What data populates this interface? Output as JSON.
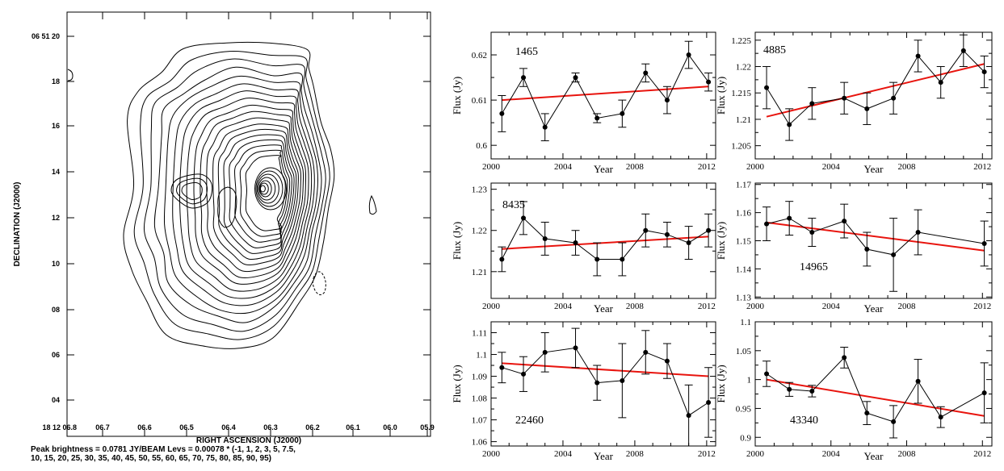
{
  "contour_map": {
    "type": "contour",
    "xlabel": "RIGHT ASCENSION (J2000)",
    "ylabel": "DECLINATION (J2000)",
    "x_ticks": [
      "18 12 06.8",
      "06.7",
      "06.6",
      "06.5",
      "06.4",
      "06.3",
      "06.2",
      "06.1",
      "06.0",
      "05.9"
    ],
    "y_ticks": [
      "06 51 20",
      "18",
      "16",
      "14",
      "12",
      "10",
      "08",
      "06",
      "04"
    ],
    "caption_line1": "Peak brightness = 0.0781 JY/BEAM     Levs = 0.00078 * (-1, 1, 2, 3, 5, 7.5,",
    "caption_line2": "10, 15, 20, 25, 30, 35, 40, 45, 50, 55, 60, 65, 70, 75, 80, 85, 90, 95)"
  },
  "chart_data": [
    {
      "type": "line",
      "label": "1465",
      "xlabel": "Year",
      "ylabel": "Flux (Jy)",
      "xlim": [
        2000,
        2012.5
      ],
      "ylim": [
        0.597,
        0.625
      ],
      "x_ticks": [
        "2000",
        "2004",
        "2008",
        "2012"
      ],
      "y_ticks": [
        "0.6",
        "0.61",
        "0.62"
      ],
      "x": [
        2000.6,
        2001.8,
        2003.0,
        2004.7,
        2005.9,
        2007.3,
        2008.6,
        2009.8,
        2011.0,
        2012.1
      ],
      "values": [
        0.607,
        0.615,
        0.604,
        0.615,
        0.606,
        0.607,
        0.616,
        0.61,
        0.62,
        0.614
      ],
      "errors": [
        0.004,
        0.002,
        0.003,
        0.001,
        0.001,
        0.003,
        0.002,
        0.003,
        0.003,
        0.002
      ],
      "fit": [
        [
          2000.6,
          0.61
        ],
        [
          2012.1,
          0.613
        ]
      ]
    },
    {
      "type": "line",
      "label": "4885",
      "xlabel": "Year",
      "ylabel": "Flux (Jy)",
      "xlim": [
        2000,
        2012.5
      ],
      "ylim": [
        1.2025,
        1.2265
      ],
      "x_ticks": [
        "2000",
        "2004",
        "2008",
        "2012"
      ],
      "y_ticks": [
        "1.205",
        "1.21",
        "1.215",
        "1.22",
        "1.225"
      ],
      "x": [
        2000.6,
        2001.8,
        2003.0,
        2004.7,
        2005.9,
        2007.3,
        2008.6,
        2009.8,
        2011.0,
        2012.1
      ],
      "values": [
        1.216,
        1.209,
        1.213,
        1.214,
        1.212,
        1.214,
        1.222,
        1.217,
        1.223,
        1.219
      ],
      "errors": [
        0.004,
        0.003,
        0.003,
        0.003,
        0.003,
        0.003,
        0.003,
        0.003,
        0.003,
        0.003
      ],
      "fit": [
        [
          2000.6,
          1.2105
        ],
        [
          2012.1,
          1.2205
        ]
      ]
    },
    {
      "type": "line",
      "label": "8435",
      "xlabel": "Year",
      "ylabel": "Flux (Jy)",
      "xlim": [
        2000,
        2012.5
      ],
      "ylim": [
        1.2035,
        1.2315
      ],
      "x_ticks": [
        "2000",
        "2004",
        "2008",
        "2012"
      ],
      "y_ticks": [
        "1.21",
        "1.22",
        "1.23"
      ],
      "x": [
        2000.6,
        2001.8,
        2003.0,
        2004.7,
        2005.9,
        2007.3,
        2008.6,
        2009.8,
        2011.0,
        2012.1
      ],
      "values": [
        1.213,
        1.223,
        1.218,
        1.217,
        1.213,
        1.213,
        1.22,
        1.219,
        1.217,
        1.22
      ],
      "errors": [
        0.003,
        0.004,
        0.004,
        0.003,
        0.004,
        0.004,
        0.004,
        0.003,
        0.004,
        0.004
      ],
      "fit": [
        [
          2000.6,
          1.2155
        ],
        [
          2012.1,
          1.2185
        ]
      ]
    },
    {
      "type": "line",
      "label": "14965",
      "xlabel": "Year",
      "ylabel": "Flux (Jy)",
      "xlim": [
        2000,
        2012.5
      ],
      "ylim": [
        1.1295,
        1.1705
      ],
      "x_ticks": [
        "2000",
        "2004",
        "2008",
        "2012"
      ],
      "y_ticks": [
        "1.13",
        "1.14",
        "1.15",
        "1.16",
        "1.17"
      ],
      "x": [
        2000.6,
        2001.8,
        2003.0,
        2004.7,
        2005.9,
        2007.3,
        2008.6,
        2012.1
      ],
      "values": [
        1.156,
        1.158,
        1.153,
        1.157,
        1.147,
        1.145,
        1.153,
        1.149
      ],
      "errors": [
        0.006,
        0.006,
        0.005,
        0.006,
        0.006,
        0.013,
        0.008,
        0.008
      ],
      "fit": [
        [
          2000.6,
          1.1565
        ],
        [
          2012.1,
          1.1465
        ]
      ]
    },
    {
      "type": "line",
      "label": "22460",
      "xlabel": "Year",
      "ylabel": "Flux (Jy)",
      "xlim": [
        2000,
        2012.5
      ],
      "ylim": [
        1.058,
        1.115
      ],
      "x_ticks": [
        "2000",
        "2004",
        "2008",
        "2012"
      ],
      "y_ticks": [
        "1.06",
        "1.07",
        "1.08",
        "1.09",
        "1.1",
        "1.11"
      ],
      "x": [
        2000.6,
        2001.8,
        2003.0,
        2004.7,
        2005.9,
        2007.3,
        2008.6,
        2009.8,
        2011.0,
        2012.1
      ],
      "values": [
        1.094,
        1.091,
        1.101,
        1.103,
        1.087,
        1.088,
        1.101,
        1.097,
        1.072,
        1.078
      ],
      "errors": [
        0.007,
        0.008,
        0.009,
        0.009,
        0.008,
        0.017,
        0.01,
        0.008,
        0.014,
        0.016
      ],
      "fit": [
        [
          2000.6,
          1.096
        ],
        [
          2012.1,
          1.09
        ]
      ]
    },
    {
      "type": "line",
      "label": "43340",
      "xlabel": "Year",
      "ylabel": "Flux (Jy)",
      "xlim": [
        2000,
        2012.5
      ],
      "ylim": [
        0.885,
        1.1
      ],
      "x_ticks": [
        "2000",
        "2004",
        "2008",
        "2012"
      ],
      "y_ticks": [
        "0.9",
        "0.95",
        "1",
        "1.05",
        "1.1"
      ],
      "x": [
        2000.6,
        2001.8,
        2003.0,
        2004.7,
        2005.9,
        2007.3,
        2008.6,
        2009.8,
        2012.1
      ],
      "values": [
        1.01,
        0.983,
        0.98,
        1.038,
        0.942,
        0.927,
        0.997,
        0.935,
        0.977
      ],
      "errors": [
        0.022,
        0.012,
        0.01,
        0.018,
        0.02,
        0.028,
        0.038,
        0.018,
        0.052
      ],
      "fit": [
        [
          2000.6,
          1.0
        ],
        [
          2012.1,
          0.937
        ]
      ]
    }
  ]
}
